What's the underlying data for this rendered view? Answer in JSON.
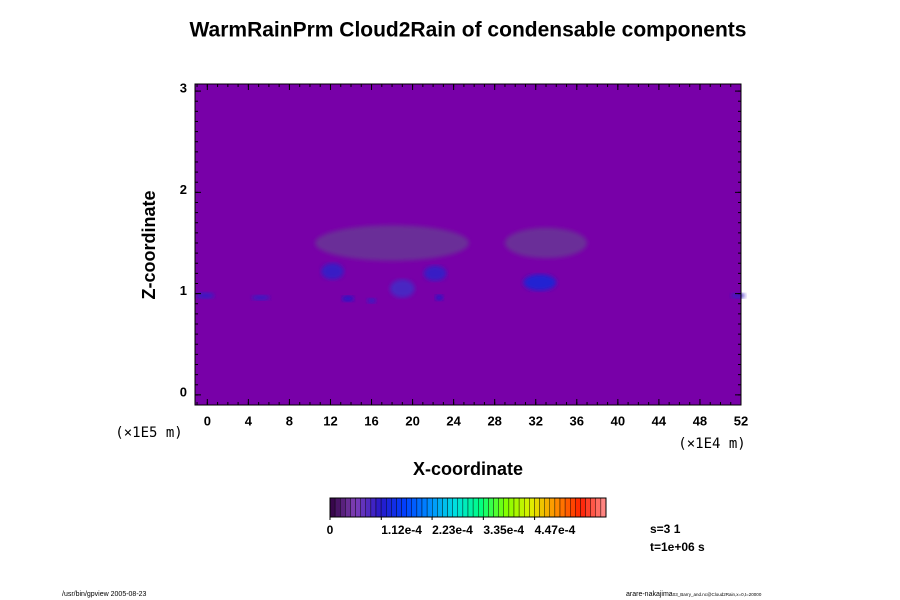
{
  "chart_data": {
    "type": "shaded",
    "title": "WarmRainPrm Cloud2Rain of condensable components",
    "xlabel": "X-coordinate",
    "ylabel": "Z-coordinate",
    "xunit": "(×1E4 m)",
    "yunit": "(×1E5 m)",
    "xlim": [
      -1.2,
      52
    ],
    "ylim": [
      -0.1,
      3.07
    ],
    "xticks": [
      0,
      4,
      8,
      12,
      16,
      20,
      24,
      28,
      32,
      36,
      40,
      44,
      48,
      52
    ],
    "yticks": [
      0,
      1,
      2,
      3
    ],
    "field_color": "#7800a8",
    "features": [
      {
        "x": 18,
        "z": 1.5,
        "dx": 15,
        "dz": 0.35,
        "value": 4e-05
      },
      {
        "x": 33,
        "z": 1.5,
        "dx": 8,
        "dz": 0.3,
        "value": 4e-05
      },
      {
        "x": -0.2,
        "z": 0.98,
        "dx": 1.8,
        "dz": 0.06,
        "value": 0.0001
      },
      {
        "x": 5.2,
        "z": 0.96,
        "dx": 1.8,
        "dz": 0.05,
        "value": 0.0001
      },
      {
        "x": 12.2,
        "z": 1.22,
        "dx": 2.2,
        "dz": 0.16,
        "value": 0.0001
      },
      {
        "x": 13.7,
        "z": 0.95,
        "dx": 1.2,
        "dz": 0.06,
        "value": 0.00011
      },
      {
        "x": 16,
        "z": 0.93,
        "dx": 0.9,
        "dz": 0.05,
        "value": 0.0001
      },
      {
        "x": 19,
        "z": 1.05,
        "dx": 2.4,
        "dz": 0.18,
        "value": 9e-05
      },
      {
        "x": 22.2,
        "z": 1.2,
        "dx": 2.2,
        "dz": 0.15,
        "value": 0.0001
      },
      {
        "x": 22.6,
        "z": 0.96,
        "dx": 0.8,
        "dz": 0.06,
        "value": 0.00011
      },
      {
        "x": 32.4,
        "z": 1.11,
        "dx": 3.2,
        "dz": 0.16,
        "value": 0.00012
      },
      {
        "x": 51.7,
        "z": 0.98,
        "dx": 1.4,
        "dz": 0.05,
        "value": 0.0001
      }
    ],
    "colorbar": {
      "lim": [
        0,
        0.000603
      ],
      "levels": 54,
      "colors": [
        "#300040",
        "#8040b8",
        "#2818c8",
        "#0040ff",
        "#0090ff",
        "#00e0e0",
        "#00ff80",
        "#80ff00",
        "#e0f000",
        "#ff9000",
        "#ff2000",
        "#ff9090"
      ],
      "ticks": [
        0,
        {
          "value": 0.000112,
          "label": "1.12e-4"
        },
        {
          "value": 0.000223,
          "label": "2.23e-4"
        },
        {
          "value": 0.000335,
          "label": "3.35e-4"
        },
        {
          "value": 0.000447,
          "label": "4.47e-4"
        }
      ]
    },
    "notes": [
      "s=3 1",
      "t=1e+06 s"
    ],
    "footer_left": "/usr/bin/gpview 2005-08-23",
    "footer_right": "arare-nakajima",
    "footer_right_sub": "03_Barry_and.nc@Cloud2Rain,x=0,t=20000"
  }
}
